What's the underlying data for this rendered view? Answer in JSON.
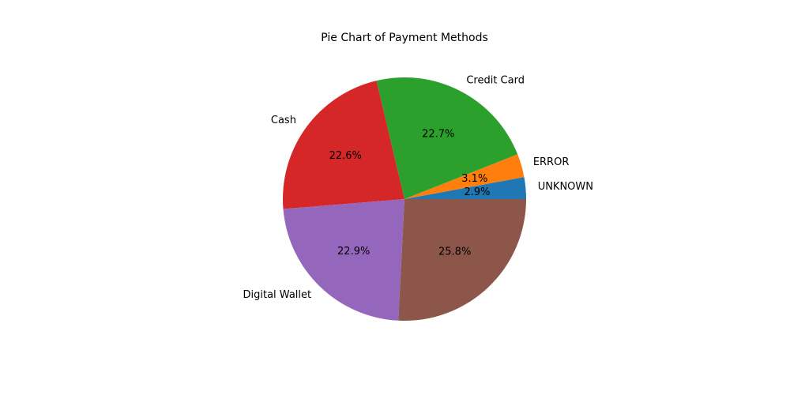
{
  "chart_data": {
    "type": "pie",
    "title": "Pie Chart of Payment Methods",
    "labels": [
      "UNKNOWN",
      "ERROR",
      "Credit Card",
      "Cash",
      "Digital Wallet",
      ""
    ],
    "values": [
      2.9,
      3.1,
      22.7,
      22.6,
      22.9,
      25.8
    ],
    "percent_labels": [
      "2.9%",
      "3.1%",
      "22.7%",
      "22.6%",
      "22.9%",
      "25.8%"
    ],
    "colors": [
      "#1f77b4",
      "#ff7f0e",
      "#2ca02c",
      "#d62728",
      "#9467bd",
      "#8c564b"
    ],
    "start_angle_deg": 0,
    "direction": "counterclockwise"
  }
}
